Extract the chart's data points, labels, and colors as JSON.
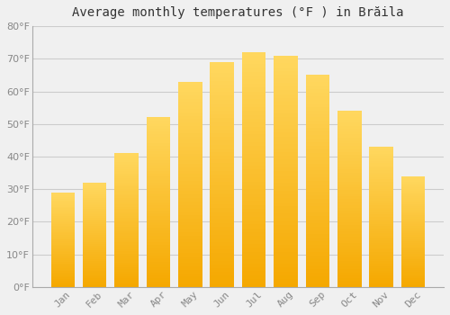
{
  "title": "Average monthly temperatures (°F ) in Brăila",
  "months": [
    "Jan",
    "Feb",
    "Mar",
    "Apr",
    "May",
    "Jun",
    "Jul",
    "Aug",
    "Sep",
    "Oct",
    "Nov",
    "Dec"
  ],
  "values": [
    29,
    32,
    41,
    52,
    63,
    69,
    72,
    71,
    65,
    54,
    43,
    34
  ],
  "bar_color_bottom": "#F5A800",
  "bar_color_top": "#FFD060",
  "background_color": "#F0F0F0",
  "ylim": [
    0,
    80
  ],
  "yticks": [
    0,
    10,
    20,
    30,
    40,
    50,
    60,
    70,
    80
  ],
  "grid_color": "#CCCCCC",
  "title_fontsize": 10,
  "tick_fontsize": 8,
  "tick_color": "#888888",
  "title_color": "#333333"
}
